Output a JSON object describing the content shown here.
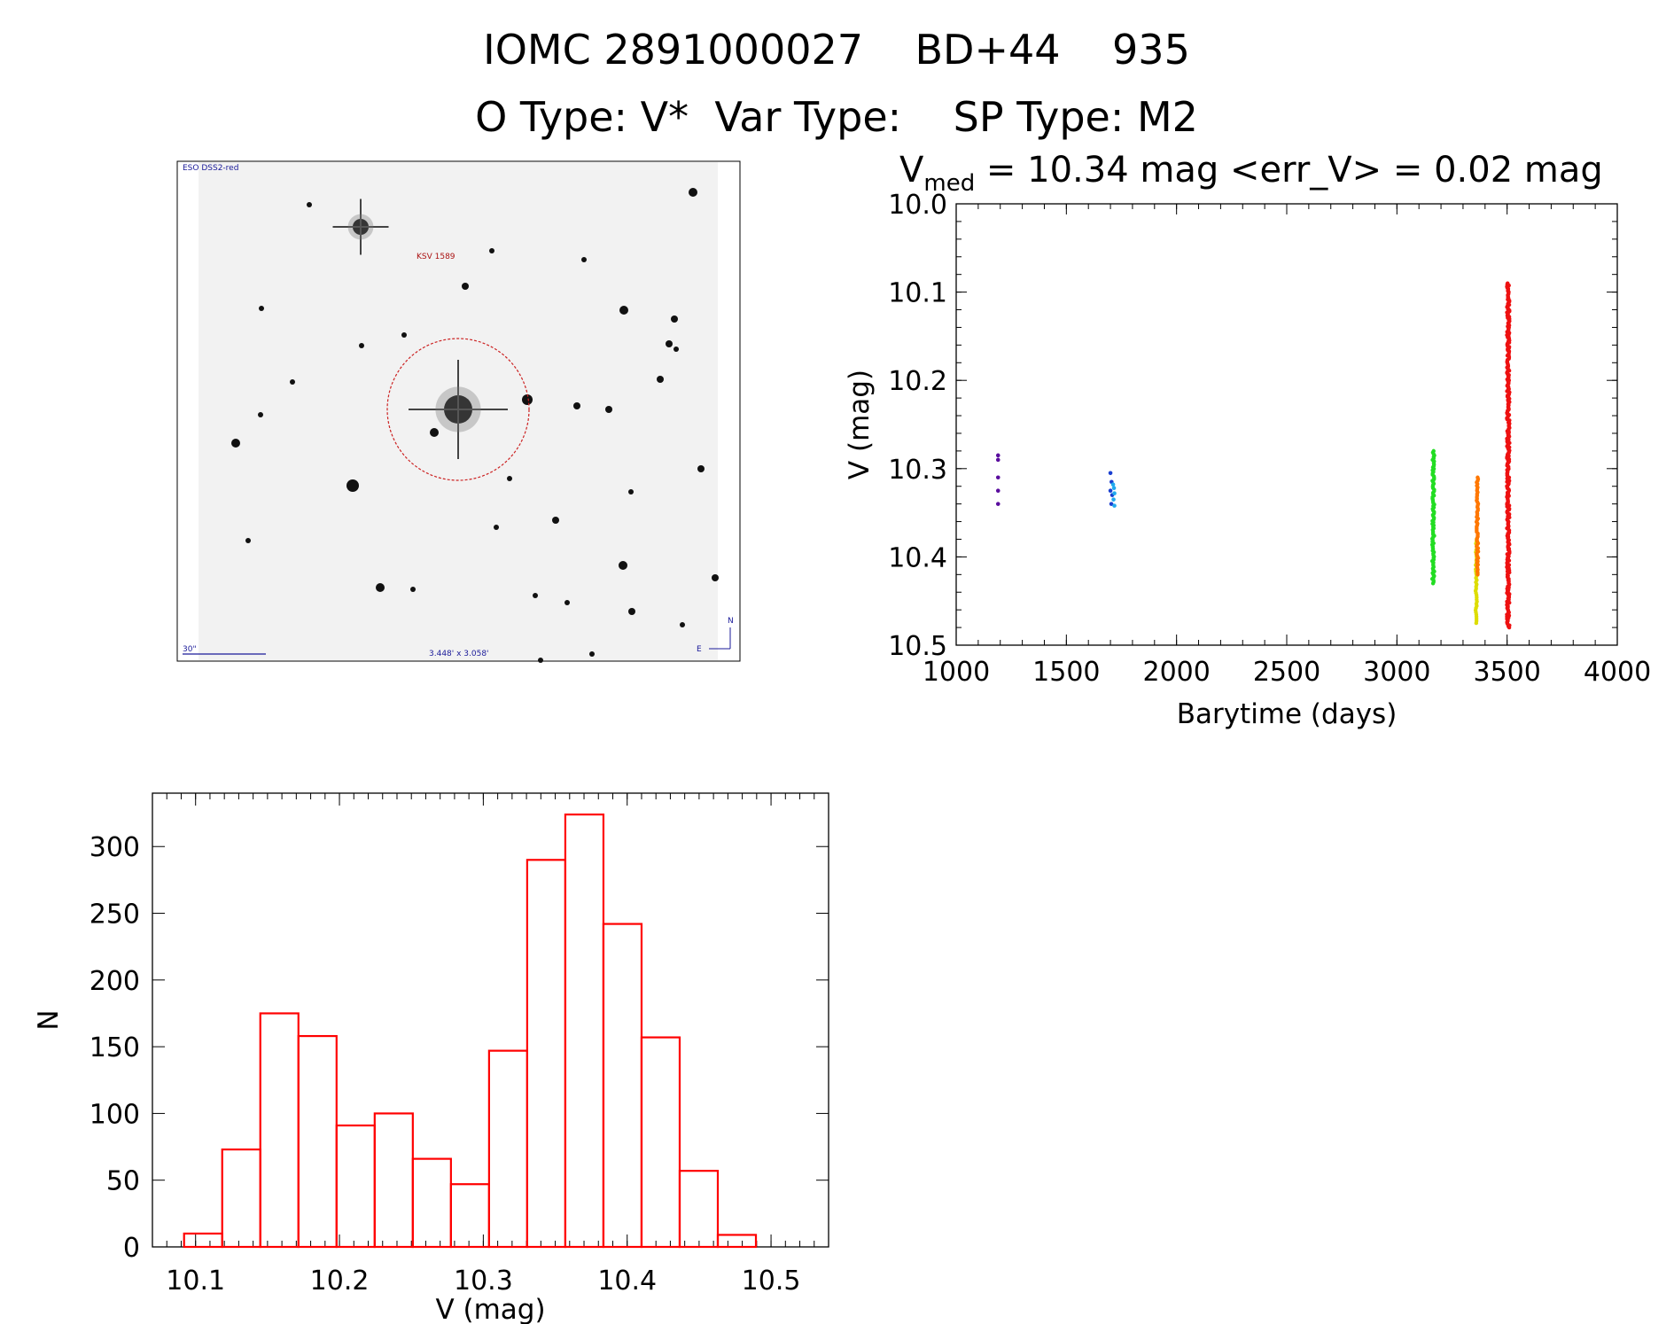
{
  "header": {
    "line1": "IOMC 2891000027    BD+44    935",
    "line2": "O Type: V*  Var Type:    SP Type: M2"
  },
  "image_panel": {
    "survey_label": "ESO DSS2-red",
    "object_label": "KSV 1589",
    "scale_label": "30\"",
    "fov_label": "3.448' x 3.058'",
    "north_label": "N",
    "east_label": "E"
  },
  "colors": {
    "histogram": "#ff0000",
    "circle": "#cc2222",
    "image_text": "#1a1a99",
    "object_label": "#aa1111"
  },
  "chart_data": [
    {
      "type": "scatter",
      "title_main": "V",
      "title_sub": "med",
      "title_rest": " = 10.34 mag <err_V> = 0.02 mag",
      "xlabel": "Barytime (days)",
      "ylabel": "V (mag)",
      "xlim": [
        1000,
        4000
      ],
      "ylim": [
        10.0,
        10.5
      ],
      "y_inverted": true,
      "xticks": [
        "1000",
        "1500",
        "2000",
        "2500",
        "3000",
        "3500",
        "4000"
      ],
      "yticks": [
        "10.0",
        "10.1",
        "10.2",
        "10.3",
        "10.4",
        "10.5"
      ],
      "series": [
        {
          "color": "#5a0d9e",
          "points": [
            [
              1190,
              10.285
            ],
            [
              1190,
              10.29
            ],
            [
              1190,
              10.31
            ],
            [
              1190,
              10.325
            ],
            [
              1190,
              10.34
            ]
          ]
        },
        {
          "color": "#1a3fd1",
          "points": [
            [
              1700,
              10.305
            ],
            [
              1705,
              10.315
            ],
            [
              1700,
              10.325
            ],
            [
              1708,
              10.33
            ],
            [
              1704,
              10.34
            ]
          ]
        },
        {
          "color": "#22aaee",
          "points": [
            [
              1712,
              10.318
            ],
            [
              1716,
              10.322
            ],
            [
              1718,
              10.328
            ],
            [
              1714,
              10.335
            ],
            [
              1718,
              10.342
            ]
          ]
        },
        {
          "color": "#22dd22",
          "segment": {
            "x": 3165,
            "x_spread": 10,
            "y_min": 10.28,
            "y_max": 10.43,
            "n": 90
          }
        },
        {
          "color": "#dddd00",
          "segment": {
            "x": 3360,
            "x_spread": 6,
            "y_min": 10.38,
            "y_max": 10.475,
            "n": 40
          }
        },
        {
          "color": "#ff7700",
          "segment": {
            "x": 3365,
            "x_spread": 8,
            "y_min": 10.31,
            "y_max": 10.42,
            "n": 60
          }
        },
        {
          "color": "#ee1111",
          "segment": {
            "x": 3505,
            "x_spread": 12,
            "y_min": 10.09,
            "y_max": 10.48,
            "n": 320
          }
        }
      ]
    },
    {
      "type": "bar",
      "xlabel": "V (mag)",
      "ylabel": "N",
      "xlim": [
        10.07,
        10.54
      ],
      "ylim": [
        0,
        340
      ],
      "xticks": [
        "10.1",
        "10.2",
        "10.3",
        "10.4",
        "10.5"
      ],
      "yticks": [
        "0",
        "50",
        "100",
        "150",
        "200",
        "250",
        "300"
      ],
      "bin_width": 0.0265,
      "bins": [
        {
          "x0": 10.092,
          "value": 10
        },
        {
          "x0": 10.1185,
          "value": 73
        },
        {
          "x0": 10.145,
          "value": 175
        },
        {
          "x0": 10.1715,
          "value": 158
        },
        {
          "x0": 10.198,
          "value": 91
        },
        {
          "x0": 10.2245,
          "value": 100
        },
        {
          "x0": 10.251,
          "value": 66
        },
        {
          "x0": 10.2775,
          "value": 47
        },
        {
          "x0": 10.304,
          "value": 147
        },
        {
          "x0": 10.3305,
          "value": 290
        },
        {
          "x0": 10.357,
          "value": 324
        },
        {
          "x0": 10.3835,
          "value": 242
        },
        {
          "x0": 10.41,
          "value": 157
        },
        {
          "x0": 10.4365,
          "value": 57
        },
        {
          "x0": 10.463,
          "value": 9
        }
      ]
    }
  ]
}
